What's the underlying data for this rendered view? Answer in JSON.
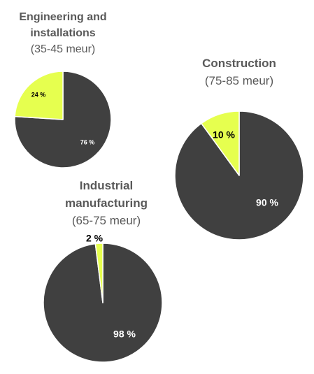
{
  "colors": {
    "major": "#404040",
    "minor": "#e6ff4f",
    "title": "#595959"
  },
  "chart_data": [
    {
      "type": "pie",
      "title_line1": "Engineering and",
      "title_line2": "installations",
      "subtitle": "(35-45 meur)",
      "slices": [
        {
          "label": "76 %",
          "value": 76,
          "color": "#404040"
        },
        {
          "label": "24 %",
          "value": 24,
          "color": "#e6ff4f"
        }
      ]
    },
    {
      "type": "pie",
      "title_line1": "Construction",
      "title_line2": "",
      "subtitle": "(75-85 meur)",
      "slices": [
        {
          "label": "90 %",
          "value": 90,
          "color": "#404040"
        },
        {
          "label": "10 %",
          "value": 10,
          "color": "#e6ff4f"
        }
      ]
    },
    {
      "type": "pie",
      "title_line1": "Industrial",
      "title_line2": "manufacturing",
      "subtitle": "(65-75 meur)",
      "slices": [
        {
          "label": "98 %",
          "value": 98,
          "color": "#404040"
        },
        {
          "label": "2 %",
          "value": 2,
          "color": "#e6ff4f"
        }
      ]
    }
  ]
}
